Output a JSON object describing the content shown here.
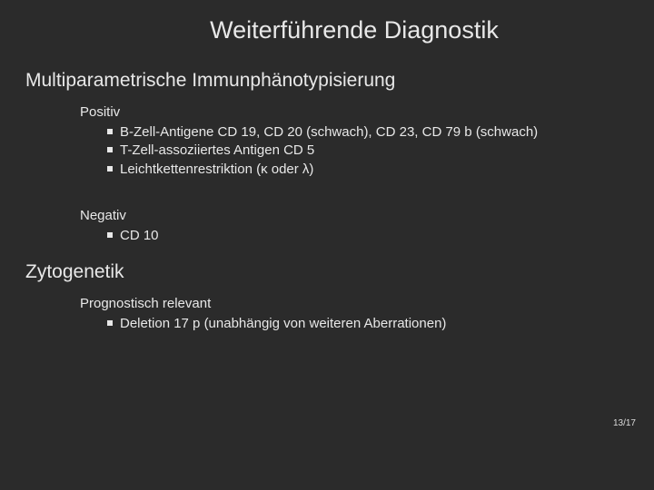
{
  "colors": {
    "background": "#2b2b2b",
    "text": "#e8e8e8",
    "bullet": "#e8e8e8"
  },
  "typography": {
    "title_fontsize": 27,
    "section_fontsize": 21,
    "body_fontsize": 15,
    "pagenum_fontsize": 10,
    "font_family": "Arial"
  },
  "title": "Weiterführende Diagnostik",
  "section1": {
    "heading": "Multiparametrische Immunphänotypisierung",
    "positive": {
      "label": "Positiv",
      "items": [
        "B-Zell-Antigene CD 19, CD 20 (schwach), CD 23, CD 79 b (schwach)",
        "T-Zell-assoziiertes Antigen CD 5",
        "Leichtkettenrestriktion (κ oder λ)"
      ]
    },
    "negative": {
      "label": "Negativ",
      "items": [
        "CD 10"
      ]
    }
  },
  "section2": {
    "heading": "Zytogenetik",
    "relevant": {
      "label": "Prognostisch relevant",
      "items": [
        "Deletion 17 p (unabhängig von weiteren Aberrationen)"
      ]
    }
  },
  "page": "13/17"
}
